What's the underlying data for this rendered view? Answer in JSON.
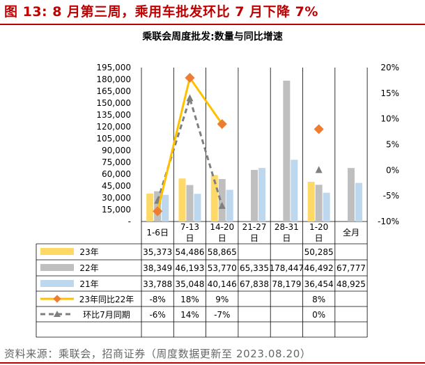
{
  "header": {
    "figure_title": "图 13: 8 月第三周，乘用车批发环比 7 月下降 7%",
    "source": "资料来源：乘联会，招商证券（周度数据更新至 2023.08.20）"
  },
  "colors": {
    "brand_red": "#c00000",
    "s23": "#ffd966",
    "s22": "#bfbfbf",
    "s21": "#bdd7ee",
    "yoy_line": "#ffc000",
    "yoy_marker": "#ed7d31",
    "mom": "#7f7f7f"
  },
  "chart_data": {
    "type": "bar",
    "title": "乘联会周度批发:数量与同比增速",
    "categories": [
      "1-6日",
      "7-13日",
      "14-20日",
      "21-27日",
      "28-31日",
      "1-20日",
      "全月"
    ],
    "y_left": {
      "ylim": [
        0,
        195000
      ],
      "ticks": [
        "-",
        "15,000",
        "30,000",
        "45,000",
        "60,000",
        "75,000",
        "90,000",
        "105,000",
        "120,000",
        "135,000",
        "150,000",
        "165,000",
        "180,000",
        "195,000"
      ]
    },
    "y_right": {
      "ylim": [
        -10,
        20
      ],
      "ticks": [
        "-10%",
        "-5%",
        "0%",
        "5%",
        "10%",
        "15%",
        "20%"
      ]
    },
    "series": [
      {
        "name": "23年",
        "kind": "bar",
        "values": [
          35373,
          54486,
          58865,
          null,
          null,
          50285,
          null
        ],
        "labels": [
          "35,373",
          "54,486",
          "58,865",
          "",
          "",
          "50,285",
          ""
        ]
      },
      {
        "name": "22年",
        "kind": "bar",
        "values": [
          38349,
          46193,
          53770,
          65335,
          178447,
          46492,
          67777
        ],
        "labels": [
          "38,349",
          "46,193",
          "53,770",
          "65,335",
          "178,447",
          "46,492",
          "67,777"
        ]
      },
      {
        "name": "21年",
        "kind": "bar",
        "values": [
          33788,
          35048,
          40146,
          67838,
          78179,
          36454,
          48925
        ],
        "labels": [
          "33,788",
          "35,048",
          "40,146",
          "67,838",
          "78,179",
          "36,454",
          "48,925"
        ]
      },
      {
        "name": "23年同比22年",
        "kind": "line",
        "axis": "right",
        "values": [
          -8,
          18,
          9,
          null,
          null,
          8,
          null
        ],
        "labels": [
          "-8%",
          "18%",
          "9%",
          "",
          "",
          "8%",
          ""
        ]
      },
      {
        "name": "环比7月同期",
        "kind": "line",
        "axis": "right",
        "values": [
          -6,
          14,
          -7,
          null,
          null,
          0,
          null
        ],
        "labels": [
          "-6%",
          "14%",
          "-7%",
          "",
          "",
          "0%",
          ""
        ]
      }
    ]
  }
}
